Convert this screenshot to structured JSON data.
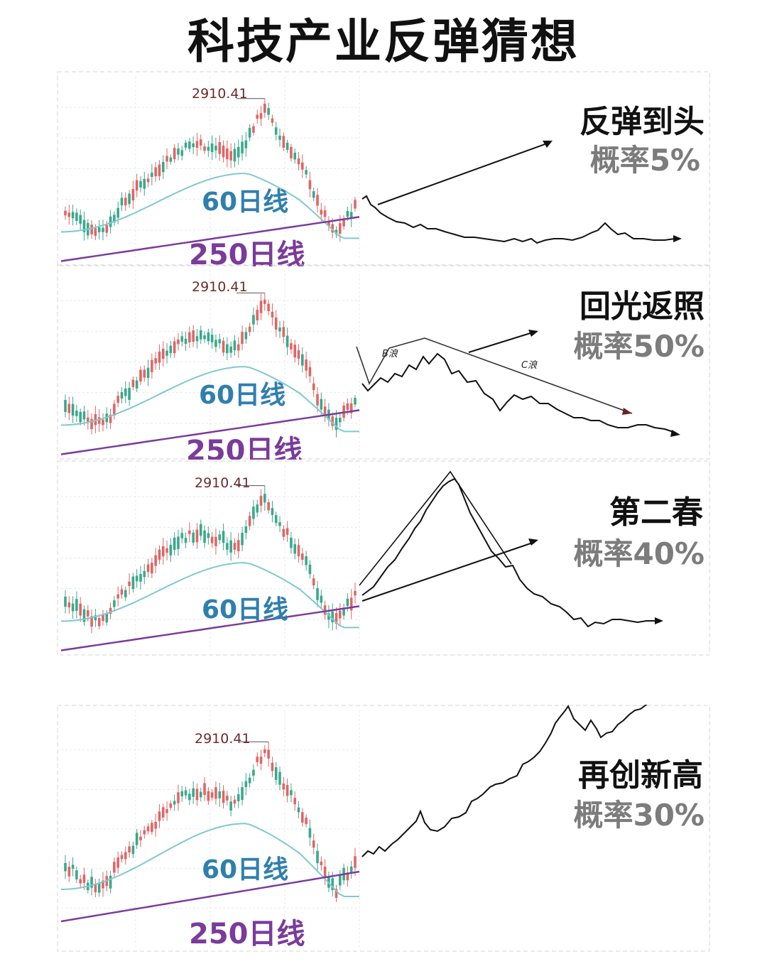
{
  "title": "科技产业反弹猜想",
  "common": {
    "peak_value": "2910.41",
    "ma60_label": "60日线",
    "ma250_label": "250日线"
  },
  "colors": {
    "bull_candle": "#e06565",
    "bear_candle": "#3aa88c",
    "ma60": "#7fc9cf",
    "ma250": "#7a3b9b",
    "sketch": "#111111",
    "sketch_arrow_dark_red": "#6d2222"
  },
  "chart_data": [
    {
      "type": "line",
      "scenario": "反弹到头",
      "probability": "概率5%",
      "peak_label": "2910.41",
      "series": [
        {
          "name": "60日线"
        },
        {
          "name": "250日线"
        }
      ],
      "projection_annotations": []
    },
    {
      "type": "line",
      "scenario": "回光返照",
      "probability": "概率50%",
      "peak_label": "2910.41",
      "series": [
        {
          "name": "60日线"
        },
        {
          "name": "250日线"
        }
      ],
      "projection_annotations": [
        "B浪",
        "C浪"
      ]
    },
    {
      "type": "line",
      "scenario": "第二春",
      "probability": "概率40%",
      "peak_label": "2910.41",
      "series": [
        {
          "name": "60日线"
        },
        {
          "name": "250日线"
        }
      ],
      "projection_annotations": []
    },
    {
      "type": "line",
      "scenario": "再创新高",
      "probability": "概率30%",
      "peak_label": "2910.41",
      "series": [
        {
          "name": "60日线"
        },
        {
          "name": "250日线"
        }
      ],
      "projection_annotations": []
    }
  ],
  "scenarios": [
    {
      "title": "反弹到头",
      "prob": "概率5%"
    },
    {
      "title": "回光返照",
      "prob": "概率50%",
      "wave_b": "B浪",
      "wave_c": "C浪"
    },
    {
      "title": "第二春",
      "prob": "概率40%"
    },
    {
      "title": "再创新高",
      "prob": "概率30%"
    }
  ]
}
